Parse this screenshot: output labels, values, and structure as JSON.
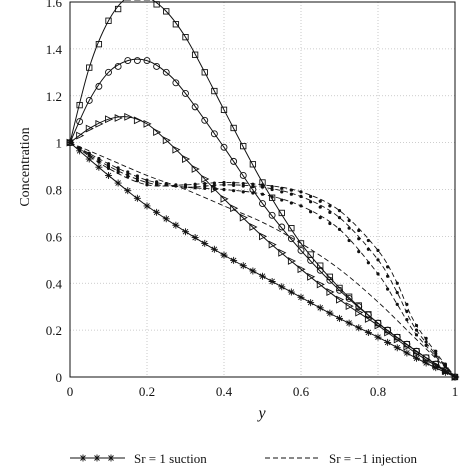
{
  "chart_data": {
    "type": "line",
    "title": "",
    "xlabel": "y",
    "ylabel": "Concentration",
    "xlim": [
      0,
      1
    ],
    "ylim": [
      0,
      1.6
    ],
    "xticks": [
      "0",
      "0.2",
      "0.4",
      "0.6",
      "0.8",
      "1"
    ],
    "yticks": [
      "0",
      "0.2",
      "0.4",
      "0.6",
      "0.8",
      "1",
      "1.2",
      "1.4",
      "1.6"
    ],
    "grid": true,
    "legend_position": "bottom",
    "series": [
      {
        "name": "Sr = 1 suction",
        "style": "solid",
        "marker": "star",
        "x": [
          0,
          0.1,
          0.2,
          0.3,
          0.4,
          0.5,
          0.6,
          0.7,
          0.8,
          0.9,
          1.0
        ],
        "y": [
          1.0,
          0.86,
          0.73,
          0.62,
          0.52,
          0.43,
          0.34,
          0.25,
          0.17,
          0.08,
          0.0
        ]
      },
      {
        "name": "",
        "style": "solid",
        "marker": "triangle",
        "x": [
          0,
          0.05,
          0.1,
          0.15,
          0.2,
          0.25,
          0.3,
          0.4,
          0.5,
          0.6,
          0.7,
          0.8,
          0.9,
          1.0
        ],
        "y": [
          1.0,
          1.06,
          1.1,
          1.11,
          1.08,
          1.01,
          0.93,
          0.76,
          0.6,
          0.46,
          0.33,
          0.22,
          0.1,
          0.0
        ]
      },
      {
        "name": "",
        "style": "solid",
        "marker": "circle",
        "x": [
          0,
          0.05,
          0.1,
          0.15,
          0.2,
          0.25,
          0.3,
          0.4,
          0.5,
          0.6,
          0.7,
          0.8,
          0.9,
          1.0
        ],
        "y": [
          1.0,
          1.18,
          1.3,
          1.35,
          1.35,
          1.3,
          1.21,
          0.98,
          0.74,
          0.54,
          0.37,
          0.23,
          0.11,
          0.0
        ]
      },
      {
        "name": "",
        "style": "solid",
        "marker": "square",
        "x": [
          0,
          0.05,
          0.1,
          0.15,
          0.2,
          0.25,
          0.3,
          0.35,
          0.4,
          0.5,
          0.6,
          0.7,
          0.8,
          0.9,
          1.0
        ],
        "y": [
          1.0,
          1.32,
          1.52,
          1.62,
          1.62,
          1.56,
          1.45,
          1.3,
          1.14,
          0.83,
          0.57,
          0.38,
          0.23,
          0.11,
          0.0
        ]
      },
      {
        "name": "Sr = −1 injection",
        "style": "dashed",
        "marker": "none",
        "x": [
          0,
          0.1,
          0.2,
          0.3,
          0.4,
          0.5,
          0.6,
          0.7,
          0.8,
          0.9,
          1.0
        ],
        "y": [
          1.0,
          0.93,
          0.86,
          0.8,
          0.73,
          0.66,
          0.57,
          0.46,
          0.32,
          0.16,
          0.0
        ]
      },
      {
        "name": "",
        "style": "dashed",
        "marker": "dot",
        "x": [
          0,
          0.1,
          0.2,
          0.3,
          0.4,
          0.5,
          0.6,
          0.7,
          0.8,
          0.85,
          0.9,
          1.0
        ],
        "y": [
          1.0,
          0.91,
          0.84,
          0.81,
          0.8,
          0.78,
          0.73,
          0.63,
          0.44,
          0.31,
          0.18,
          0.0
        ]
      },
      {
        "name": "",
        "style": "dashed",
        "marker": "dot",
        "x": [
          0,
          0.1,
          0.2,
          0.3,
          0.4,
          0.5,
          0.6,
          0.7,
          0.8,
          0.85,
          0.9,
          1.0
        ],
        "y": [
          1.0,
          0.9,
          0.83,
          0.81,
          0.82,
          0.81,
          0.77,
          0.68,
          0.5,
          0.36,
          0.2,
          0.0
        ]
      },
      {
        "name": "",
        "style": "dashed",
        "marker": "dot",
        "x": [
          0,
          0.1,
          0.2,
          0.3,
          0.4,
          0.5,
          0.6,
          0.7,
          0.8,
          0.85,
          0.9,
          1.0
        ],
        "y": [
          1.0,
          0.89,
          0.82,
          0.82,
          0.83,
          0.82,
          0.79,
          0.71,
          0.54,
          0.4,
          0.22,
          0.0
        ]
      }
    ],
    "legend": [
      {
        "label": "Sr = 1 suction",
        "style": "solid",
        "marker": "star"
      },
      {
        "label": "Sr = −1 injection",
        "style": "dashed",
        "marker": "none"
      }
    ]
  }
}
